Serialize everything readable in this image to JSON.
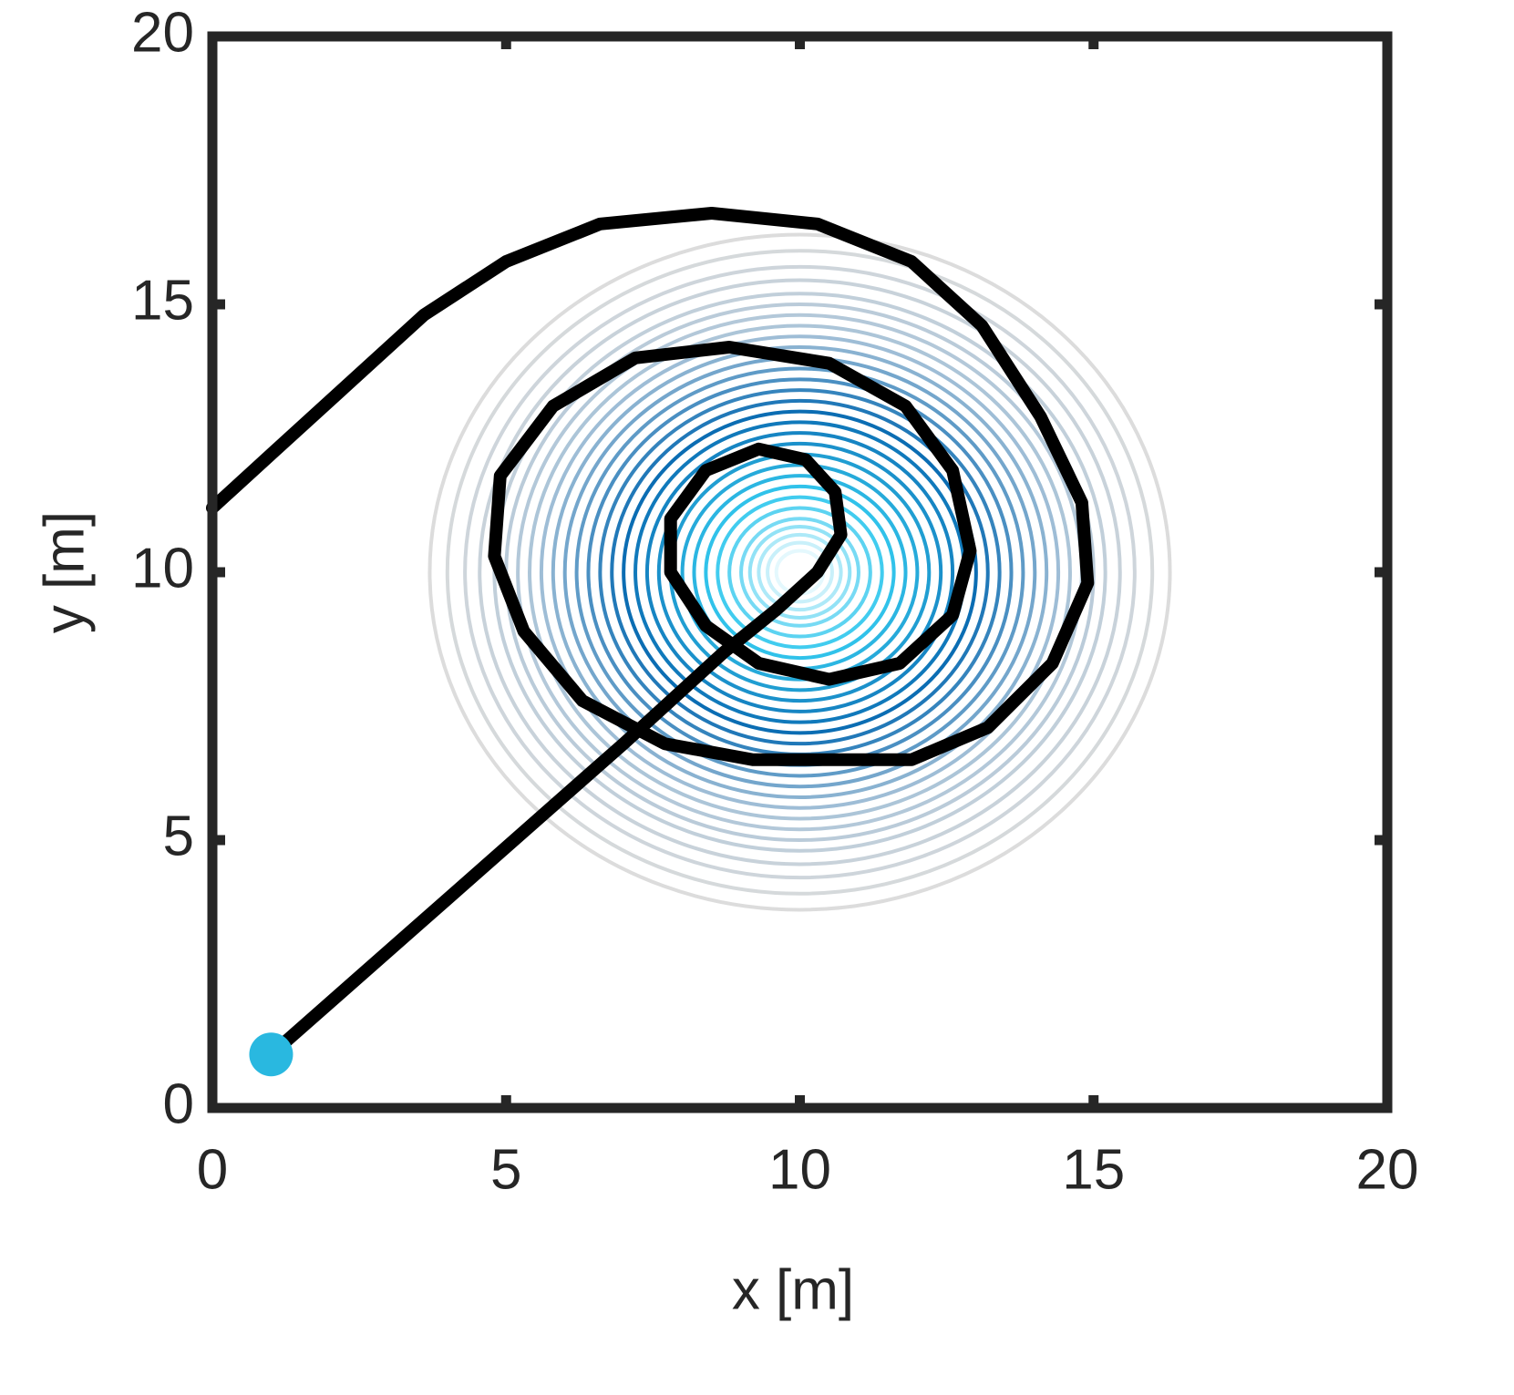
{
  "chart_data": {
    "type": "line",
    "x_label": "x [m]",
    "y_label": "y [m]",
    "x": [
      1.0,
      4.0,
      7.0,
      8.7,
      9.6,
      10.3,
      10.7,
      10.6,
      10.1,
      9.3,
      8.4,
      7.8,
      7.8,
      8.4,
      9.3,
      10.5,
      11.7,
      12.6,
      12.9,
      12.6,
      11.8,
      10.5,
      8.8,
      7.2,
      5.8,
      4.9,
      4.8,
      5.3,
      6.3,
      7.7,
      9.2,
      10.5,
      11.9,
      13.2,
      14.3,
      14.9,
      14.8,
      14.1,
      13.1,
      11.9,
      10.3,
      8.5,
      6.6,
      5.0,
      3.6,
      2.3,
      1.0,
      0.0
    ],
    "y": [
      1.0,
      3.9,
      6.8,
      8.5,
      9.3,
      10.0,
      10.7,
      11.5,
      12.1,
      12.3,
      11.9,
      11.0,
      10.0,
      9.0,
      8.3,
      8.0,
      8.3,
      9.2,
      10.4,
      11.9,
      13.1,
      13.9,
      14.2,
      14.0,
      13.1,
      11.8,
      10.3,
      8.9,
      7.6,
      6.8,
      6.5,
      6.5,
      6.5,
      7.1,
      8.3,
      9.8,
      11.3,
      12.9,
      14.6,
      15.8,
      16.5,
      16.7,
      16.5,
      15.8,
      14.8,
      13.5,
      12.2,
      11.2
    ],
    "color": "#000000",
    "marker": {
      "x": 1,
      "y": 1,
      "color": "#29b8e0"
    },
    "contours": {
      "center": [
        10,
        10
      ],
      "radii": [
        6.3,
        6.0,
        5.7,
        5.45,
        5.2,
        5.0,
        4.8,
        4.6,
        4.4,
        4.2,
        4.0,
        3.8,
        3.6,
        3.4,
        3.2,
        3.0,
        2.8,
        2.6,
        2.4,
        2.2,
        2.0,
        1.8,
        1.6,
        1.4,
        1.2,
        1.0,
        0.85,
        0.7,
        0.55,
        0.4,
        0.25
      ],
      "colormap": [
        "#dcdcdc",
        "#a9c3d8",
        "#0b6db3",
        "#33c8ee",
        "#ffffff"
      ]
    },
    "xlim": [
      0,
      20
    ],
    "ylim": [
      0,
      20
    ],
    "xticks": [
      0,
      5,
      10,
      15,
      20
    ],
    "yticks": [
      0,
      5,
      10,
      15,
      20
    ]
  }
}
